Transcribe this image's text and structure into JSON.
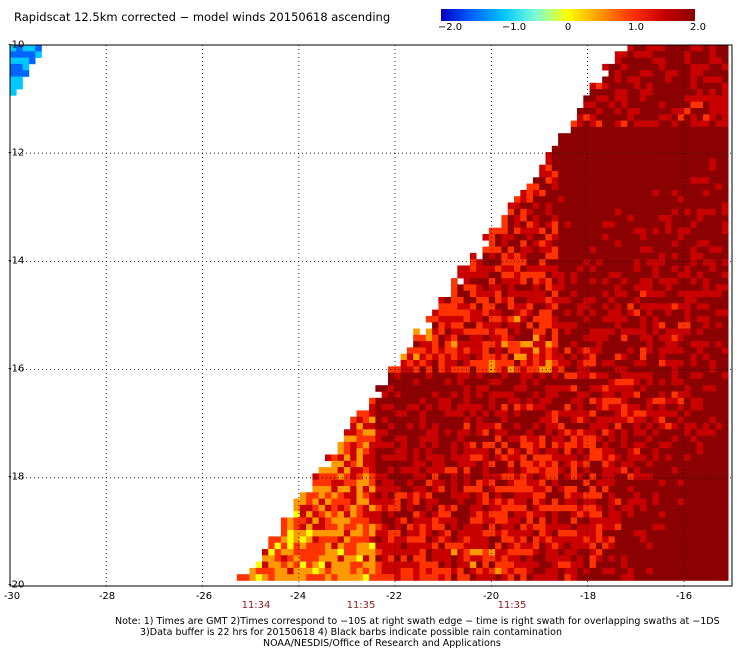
{
  "title": "Rapidscat 12.5km corrected − model winds 20150618 ascending",
  "colorbar": {
    "min": -2.0,
    "max": 2.0,
    "ticks": [
      "−2.0",
      "−1.0",
      "0",
      "1.0",
      "2.0"
    ],
    "colors": [
      "#0000c8",
      "#0064ff",
      "#00c8ff",
      "#7fffd4",
      "#ffff00",
      "#ff9900",
      "#ff3300",
      "#c80000",
      "#8b0000"
    ]
  },
  "map": {
    "lon_range": [
      -30,
      -15
    ],
    "lat_range": [
      -20,
      -10
    ],
    "y_ticks": [
      "-10",
      "-12",
      "-14",
      "-16",
      "-18",
      "-20"
    ],
    "x_ticks": [
      "-30",
      "-28",
      "-26",
      "-24",
      "-22",
      "-20",
      "-18",
      "-16"
    ],
    "time_labels": [
      "11:34",
      "11:35",
      "11:35"
    ],
    "time_label_lons": [
      -24.9,
      -22.7,
      -20.3
    ]
  },
  "notes": {
    "line1": "Note: 1) Times are GMT 2)Times correspond to −10S at right swath edge − time is right swath for overlapping swaths at −1DS",
    "line2": "3)Data buffer is 22 hrs for 20150618 4) Black barbs indicate possible rain contamination",
    "line3": "NOAA/NESDIS/Office of Research and Applications"
  }
}
